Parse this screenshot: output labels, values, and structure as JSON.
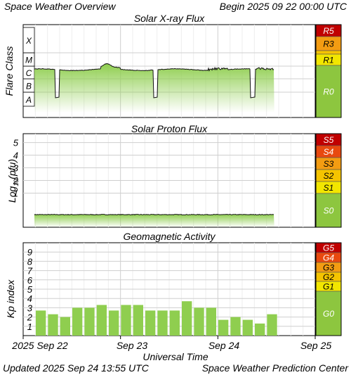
{
  "header": {
    "title": "Space Weather Overview",
    "begin": "Begin 2025 09 22 00:00 UTC"
  },
  "footer": {
    "updated": "Updated 2025 Sep 24 13:55 UTC",
    "credit": "Space Weather Prediction Center",
    "xlabel": "Universal Time"
  },
  "x_ticks": [
    "2025 Sep 22",
    "Sep 23",
    "Sep 24",
    "Sep 25"
  ],
  "colors": {
    "green": "#8fce4f",
    "r0": "#8dc63f",
    "level1": "#f2e600",
    "level2": "#f5c400",
    "level3": "#f39c12",
    "level4": "#e8490f",
    "level5": "#c00000"
  },
  "chart_data": [
    {
      "type": "line",
      "title": "Solar X-ray Flux",
      "ylabel": "Flare Class",
      "y_classes": [
        "A",
        "B",
        "C",
        "M",
        "X"
      ],
      "x_range_days": [
        0,
        3
      ],
      "data_end_day": 2.58,
      "baseline_class_level": 2.6,
      "dropouts": [
        {
          "start": 0.33,
          "end": 0.37
        },
        {
          "start": 1.34,
          "end": 1.38
        },
        {
          "start": 2.33,
          "end": 2.38
        }
      ],
      "scale": [
        "R5",
        "R3",
        "R1",
        "R0"
      ]
    },
    {
      "type": "line",
      "title": "Solar Proton Flux",
      "ylabel": "Log10(pfu)",
      "ylabel_main": "Log",
      "ylabel_sub": "10",
      "ylabel_tail": "(pfu)",
      "y_ticks": [
        "1",
        "2",
        "3",
        "4",
        "5"
      ],
      "ylim": [
        -1.7,
        5.7
      ],
      "x_range_days": [
        0,
        3
      ],
      "data_end_day": 2.58,
      "baseline_log": -0.7,
      "scale": [
        "S5",
        "S4",
        "S3",
        "S2",
        "S1",
        "S0"
      ]
    },
    {
      "type": "bar",
      "title": "Geomagnetic Activity",
      "ylabel": "Kp index",
      "y_ticks": [
        "1",
        "2",
        "3",
        "4",
        "5",
        "6",
        "7",
        "8",
        "9"
      ],
      "ylim": [
        0,
        10
      ],
      "x_range_days": [
        0,
        3
      ],
      "bar_interval_hours": 3,
      "values": [
        2.7,
        2.3,
        2.0,
        3.0,
        3.0,
        3.3,
        2.7,
        3.3,
        3.3,
        2.7,
        2.7,
        2.7,
        3.7,
        3.0,
        3.0,
        1.7,
        2.0,
        1.7,
        1.3,
        2.3
      ],
      "scale": [
        "G5",
        "G4",
        "G3",
        "G2",
        "G1",
        "G0"
      ]
    }
  ]
}
